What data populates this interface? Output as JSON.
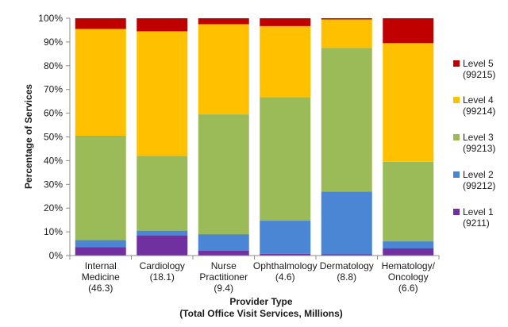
{
  "chart_data": {
    "type": "bar",
    "stacked": true,
    "title": "",
    "ylabel": "Percentage of Services",
    "xlabel_line1": "Provider Type",
    "xlabel_line2": "(Total Office Visit Services, Millions)",
    "ylim": [
      0,
      100
    ],
    "yticks": [
      0,
      10,
      20,
      30,
      40,
      50,
      60,
      70,
      80,
      90,
      100
    ],
    "ytick_suffix": "%",
    "grid": false,
    "legend_position": "right",
    "categories": [
      {
        "lines": [
          "Internal",
          "Medicine",
          "(46.3)"
        ]
      },
      {
        "lines": [
          "Cardiology",
          "(18.1)"
        ]
      },
      {
        "lines": [
          "Nurse",
          "Practitioner",
          "(9.4)"
        ]
      },
      {
        "lines": [
          "Ophthalmology",
          "(4.6)"
        ]
      },
      {
        "lines": [
          "Dermatology",
          "(8.8)"
        ]
      },
      {
        "lines": [
          "Hematology/",
          "Oncology",
          "(6.6)"
        ]
      }
    ],
    "series": [
      {
        "name": "Level 1",
        "code": "(9211)",
        "color": "#7030a0",
        "values": [
          3.5,
          8.5,
          2.0,
          0.7,
          0.5,
          3.0
        ]
      },
      {
        "name": "Level 2",
        "code": "(99212)",
        "color": "#4a86d4",
        "values": [
          3.0,
          2.0,
          7.0,
          14.0,
          26.5,
          3.0
        ]
      },
      {
        "name": "Level 3",
        "code": "(99213)",
        "color": "#9bbb59",
        "values": [
          44.0,
          31.5,
          50.5,
          52.0,
          60.5,
          33.5
        ]
      },
      {
        "name": "Level 4",
        "code": "(99214)",
        "color": "#ffc000",
        "values": [
          45.0,
          52.5,
          38.0,
          30.0,
          12.0,
          50.0
        ]
      },
      {
        "name": "Level 5",
        "code": "(99215)",
        "color": "#c00000",
        "values": [
          4.5,
          5.5,
          2.5,
          3.3,
          0.5,
          10.5
        ]
      }
    ]
  }
}
